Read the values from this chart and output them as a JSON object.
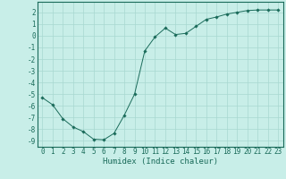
{
  "x": [
    0,
    1,
    2,
    3,
    4,
    5,
    6,
    7,
    8,
    9,
    10,
    11,
    12,
    13,
    14,
    15,
    16,
    17,
    18,
    19,
    20,
    21,
    22,
    23
  ],
  "y": [
    -5.3,
    -5.9,
    -7.1,
    -7.8,
    -8.2,
    -8.85,
    -8.9,
    -8.35,
    -6.8,
    -5.0,
    -1.3,
    -0.1,
    0.65,
    0.1,
    0.2,
    0.8,
    1.4,
    1.6,
    1.85,
    2.0,
    2.15,
    2.2,
    2.2,
    2.2
  ],
  "line_color": "#1a6b5a",
  "marker_color": "#1a6b5a",
  "bg_color": "#c8eee8",
  "grid_color": "#a8d8d0",
  "xlabel": "Humidex (Indice chaleur)",
  "xlim": [
    -0.5,
    23.5
  ],
  "ylim": [
    -9.5,
    2.9
  ],
  "yticks": [
    2,
    1,
    0,
    -1,
    -2,
    -3,
    -4,
    -5,
    -6,
    -7,
    -8,
    -9
  ],
  "xticks": [
    0,
    1,
    2,
    3,
    4,
    5,
    6,
    7,
    8,
    9,
    10,
    11,
    12,
    13,
    14,
    15,
    16,
    17,
    18,
    19,
    20,
    21,
    22,
    23
  ],
  "tick_fontsize": 5.5,
  "xlabel_fontsize": 6.5
}
